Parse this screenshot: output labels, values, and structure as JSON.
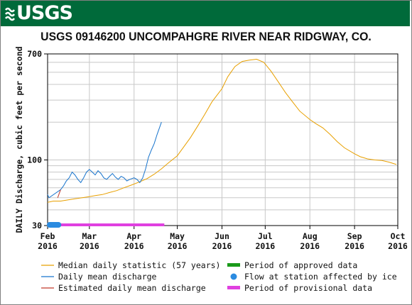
{
  "header": {
    "logo_text": "USGS"
  },
  "chart_data": {
    "type": "line",
    "title": "USGS 09146200 UNCOMPAHGRE RIVER NEAR RIDGWAY, CO.",
    "ylabel": "DAILY Discharge, cubic feet per second",
    "xlabel": "",
    "yscale": "log",
    "ylim": [
      30,
      700
    ],
    "xlim": [
      "2016-02-01",
      "2016-10-01"
    ],
    "yticks": [
      {
        "value": 30,
        "label": "30"
      },
      {
        "value": 100,
        "label": "100"
      },
      {
        "value": 700,
        "label": "700"
      }
    ],
    "ygrid": [
      40,
      50,
      60,
      70,
      80,
      90,
      200,
      300,
      400,
      500,
      600
    ],
    "xticks": [
      {
        "date": "2016-02-01",
        "label": "Feb",
        "year": "2016"
      },
      {
        "date": "2016-03-01",
        "label": "Mar",
        "year": "2016"
      },
      {
        "date": "2016-04-01",
        "label": "Apr",
        "year": "2016"
      },
      {
        "date": "2016-05-01",
        "label": "May",
        "year": "2016"
      },
      {
        "date": "2016-06-01",
        "label": "Jun",
        "year": "2016"
      },
      {
        "date": "2016-07-01",
        "label": "Jul",
        "year": "2016"
      },
      {
        "date": "2016-08-01",
        "label": "Aug",
        "year": "2016"
      },
      {
        "date": "2016-09-01",
        "label": "Sep",
        "year": "2016"
      },
      {
        "date": "2016-10-01",
        "label": "Oct",
        "year": "2016"
      }
    ],
    "series": [
      {
        "name": "Median daily statistic (57 years)",
        "color": "#e8a000",
        "points": [
          [
            "2016-02-01",
            46
          ],
          [
            "2016-02-05",
            47
          ],
          [
            "2016-02-10",
            47
          ],
          [
            "2016-02-15",
            48
          ],
          [
            "2016-02-20",
            49
          ],
          [
            "2016-02-25",
            50
          ],
          [
            "2016-03-01",
            51
          ],
          [
            "2016-03-05",
            52
          ],
          [
            "2016-03-10",
            53
          ],
          [
            "2016-03-15",
            55
          ],
          [
            "2016-03-20",
            57
          ],
          [
            "2016-03-25",
            60
          ],
          [
            "2016-03-30",
            63
          ],
          [
            "2016-04-05",
            67
          ],
          [
            "2016-04-10",
            71
          ],
          [
            "2016-04-15",
            77
          ],
          [
            "2016-04-20",
            85
          ],
          [
            "2016-04-25",
            95
          ],
          [
            "2016-05-01",
            108
          ],
          [
            "2016-05-05",
            125
          ],
          [
            "2016-05-10",
            150
          ],
          [
            "2016-05-15",
            185
          ],
          [
            "2016-05-20",
            230
          ],
          [
            "2016-05-25",
            290
          ],
          [
            "2016-06-01",
            370
          ],
          [
            "2016-06-05",
            460
          ],
          [
            "2016-06-10",
            555
          ],
          [
            "2016-06-15",
            610
          ],
          [
            "2016-06-20",
            625
          ],
          [
            "2016-06-25",
            635
          ],
          [
            "2016-06-30",
            600
          ],
          [
            "2016-07-05",
            510
          ],
          [
            "2016-07-10",
            420
          ],
          [
            "2016-07-15",
            345
          ],
          [
            "2016-07-20",
            290
          ],
          [
            "2016-07-25",
            245
          ],
          [
            "2016-08-01",
            210
          ],
          [
            "2016-08-05",
            195
          ],
          [
            "2016-08-10",
            180
          ],
          [
            "2016-08-15",
            160
          ],
          [
            "2016-08-20",
            140
          ],
          [
            "2016-08-25",
            125
          ],
          [
            "2016-09-01",
            112
          ],
          [
            "2016-09-05",
            106
          ],
          [
            "2016-09-10",
            102
          ],
          [
            "2016-09-15",
            100
          ],
          [
            "2016-09-20",
            99
          ],
          [
            "2016-09-25",
            96
          ],
          [
            "2016-09-30",
            92
          ]
        ]
      },
      {
        "name": "Daily mean discharge",
        "color": "#1874cd",
        "points": [
          [
            "2016-02-01",
            53
          ],
          [
            "2016-02-02",
            50
          ],
          [
            "2016-02-10",
            58
          ],
          [
            "2016-02-12",
            62
          ],
          [
            "2016-02-14",
            68
          ],
          [
            "2016-02-16",
            72
          ],
          [
            "2016-02-18",
            80
          ],
          [
            "2016-02-20",
            76
          ],
          [
            "2016-02-22",
            70
          ],
          [
            "2016-02-24",
            66
          ],
          [
            "2016-02-26",
            72
          ],
          [
            "2016-02-28",
            80
          ],
          [
            "2016-03-01",
            84
          ],
          [
            "2016-03-03",
            80
          ],
          [
            "2016-03-05",
            76
          ],
          [
            "2016-03-07",
            82
          ],
          [
            "2016-03-09",
            78
          ],
          [
            "2016-03-11",
            72
          ],
          [
            "2016-03-13",
            70
          ],
          [
            "2016-03-15",
            74
          ],
          [
            "2016-03-17",
            78
          ],
          [
            "2016-03-19",
            73
          ],
          [
            "2016-03-21",
            70
          ],
          [
            "2016-03-23",
            74
          ],
          [
            "2016-03-25",
            72
          ],
          [
            "2016-03-27",
            68
          ],
          [
            "2016-03-29",
            70
          ],
          [
            "2016-04-01",
            72
          ],
          [
            "2016-04-03",
            70
          ],
          [
            "2016-04-05",
            66
          ],
          [
            "2016-04-07",
            72
          ],
          [
            "2016-04-09",
            85
          ],
          [
            "2016-04-11",
            105
          ],
          [
            "2016-04-13",
            120
          ],
          [
            "2016-04-15",
            135
          ],
          [
            "2016-04-17",
            160
          ],
          [
            "2016-04-19",
            185
          ],
          [
            "2016-04-20",
            200
          ]
        ]
      },
      {
        "name": "Estimated daily mean discharge",
        "color": "#c0392b",
        "points": [
          [
            "2016-02-08",
            50
          ],
          [
            "2016-02-10",
            58
          ]
        ]
      }
    ],
    "ice_period": [
      "2016-02-01",
      "2016-02-10"
    ],
    "provisional_period": [
      "2016-02-01",
      "2016-04-22"
    ],
    "legend": [
      {
        "label": "Median daily statistic (57 years)",
        "color": "#e8a000",
        "marker": "line"
      },
      {
        "label": "Daily mean discharge",
        "color": "#1874cd",
        "marker": "line"
      },
      {
        "label": "Estimated daily mean discharge",
        "color": "#c0392b",
        "marker": "line"
      },
      {
        "label": "Period of approved data",
        "color": "#1a9a1a",
        "marker": "bar"
      },
      {
        "label": "Flow at station affected by ice",
        "color": "#2b8be0",
        "marker": "dot"
      },
      {
        "label": "Period of provisional data",
        "color": "#e040e0",
        "marker": "bar"
      }
    ]
  }
}
